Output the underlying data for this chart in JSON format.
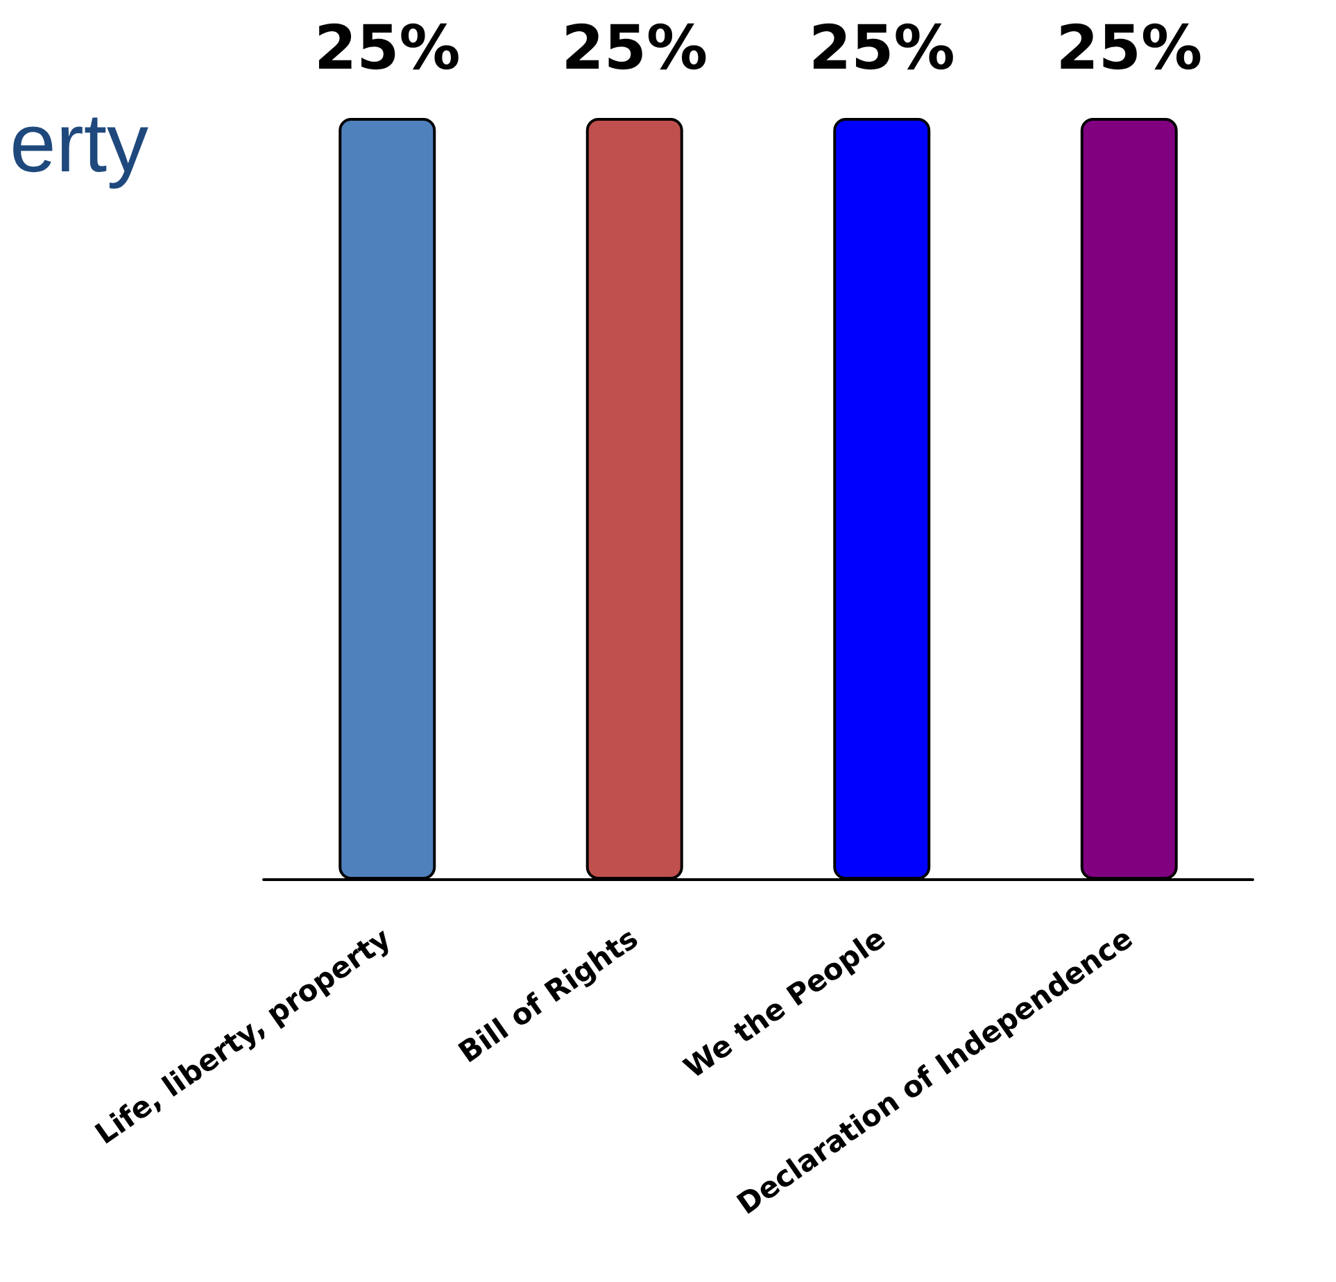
{
  "chart_data": {
    "type": "bar",
    "title": "erty",
    "categories": [
      "Life, liberty, property",
      "Bill of Rights",
      "We the People",
      "Declaration of Independence"
    ],
    "values": [
      25,
      25,
      25,
      25
    ],
    "colors": [
      "#4f81bd",
      "#c0504d",
      "#0000ff",
      "#800080"
    ],
    "value_labels": [
      "25%",
      "25%",
      "25%",
      "25%"
    ]
  }
}
